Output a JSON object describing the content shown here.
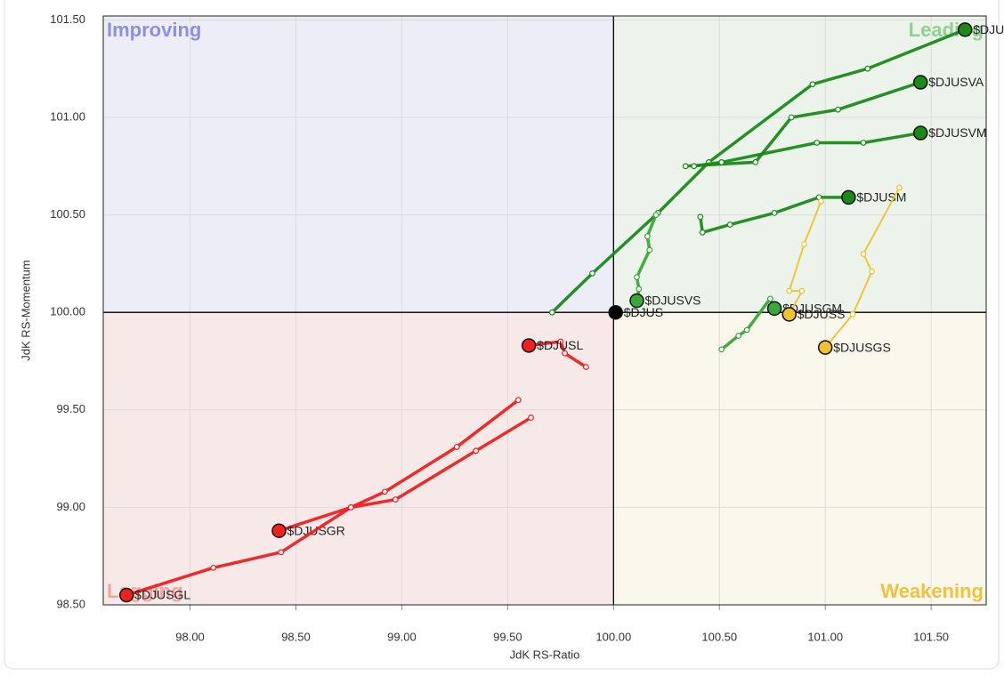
{
  "chart_data": {
    "type": "rrg",
    "x_label": "JdK RS-Ratio",
    "y_label": "JdK RS-Momentum",
    "xlim": [
      97.59,
      101.76
    ],
    "ylim": [
      98.5,
      101.52
    ],
    "xticks": [
      {
        "value": 98,
        "label": "98.00"
      },
      {
        "value": 98.5,
        "label": "98.50"
      },
      {
        "value": 99,
        "label": "99.00"
      },
      {
        "value": 99.5,
        "label": "99.50"
      },
      {
        "value": 100,
        "label": "100.00"
      },
      {
        "value": 100.5,
        "label": "100.50"
      },
      {
        "value": 101,
        "label": "101.00"
      },
      {
        "value": 101.5,
        "label": "101.50"
      }
    ],
    "yticks": [
      {
        "value": 98.5,
        "label": "98.50"
      },
      {
        "value": 99,
        "label": "99.00"
      },
      {
        "value": 99.5,
        "label": "99.50"
      },
      {
        "value": 100,
        "label": "100.00"
      },
      {
        "value": 100.5,
        "label": "100.50"
      },
      {
        "value": 101,
        "label": "101.00"
      },
      {
        "value": 101.5,
        "label": "101.50"
      }
    ],
    "grid": true,
    "quadrant_center": [
      100,
      100
    ],
    "quadrants": [
      {
        "label": "Improving",
        "color": "#8c8fe6",
        "fill": "#ededf7",
        "corner": "top-left"
      },
      {
        "label": "Leading",
        "color": "#90d090",
        "fill": "#ebf3ea",
        "corner": "top-right"
      },
      {
        "label": "Lagging",
        "color": "#f4a3a3",
        "fill": "#f8e9e9",
        "corner": "bottom-left"
      },
      {
        "label": "Weakening",
        "color": "#f0c240",
        "fill": "#faf7ec",
        "corner": "bottom-right"
      }
    ],
    "series": [
      {
        "name": "$DJUSVL",
        "color": "#1a8a1a",
        "x": [
          99.71,
          99.9,
          100.21,
          100.45,
          100.94,
          101.2,
          101.66
        ],
        "y": [
          100.0,
          100.2,
          100.51,
          100.77,
          101.17,
          101.25,
          101.45
        ]
      },
      {
        "name": "$DJUSVA",
        "color": "#1a8a1a",
        "x": [
          100.34,
          100.67,
          100.84,
          101.06,
          101.45
        ],
        "y": [
          100.75,
          100.77,
          101.0,
          101.04,
          101.18
        ]
      },
      {
        "name": "$DJUSVM",
        "color": "#1a8a1a",
        "x": [
          100.38,
          100.51,
          100.96,
          101.18,
          101.45
        ],
        "y": [
          100.75,
          100.77,
          100.87,
          100.87,
          100.92
        ]
      },
      {
        "name": "$DJUSM",
        "color": "#1a8a1a",
        "x": [
          100.41,
          100.42,
          100.55,
          100.76,
          100.97,
          101.11
        ],
        "y": [
          100.49,
          100.41,
          100.45,
          100.51,
          100.59,
          100.59
        ]
      },
      {
        "name": "$DJUSVS",
        "color": "#3aa83a",
        "x": [
          100.2,
          100.16,
          100.17,
          100.11,
          100.12,
          100.11
        ],
        "y": [
          100.5,
          100.39,
          100.32,
          100.18,
          100.12,
          100.06
        ]
      },
      {
        "name": "$DJUSGM",
        "color": "#3aa83a",
        "x": [
          100.51,
          100.59,
          100.63,
          100.74,
          100.76
        ],
        "y": [
          99.81,
          99.88,
          99.91,
          100.07,
          100.02
        ]
      },
      {
        "name": "$DJUSS",
        "color": "#f0c230",
        "x": [
          100.98,
          100.9,
          100.83,
          100.89,
          100.83
        ],
        "y": [
          100.57,
          100.35,
          100.11,
          100.11,
          99.99
        ]
      },
      {
        "name": "$DJUSGS",
        "color": "#f0c230",
        "x": [
          101.35,
          101.18,
          101.22,
          101.13,
          101.0
        ],
        "y": [
          100.64,
          100.3,
          100.21,
          99.99,
          99.82
        ]
      },
      {
        "name": "$DJUSL",
        "color": "#ee2020",
        "x": [
          99.87,
          99.77,
          99.75,
          99.6
        ],
        "y": [
          99.72,
          99.79,
          99.85,
          99.83
        ]
      },
      {
        "name": "$DJUSGR",
        "color": "#ee2020",
        "x": [
          99.55,
          99.26,
          98.92,
          98.76,
          98.42
        ],
        "y": [
          99.55,
          99.31,
          99.08,
          99.0,
          98.88
        ]
      },
      {
        "name": "$DJUSGL",
        "color": "#ee2020",
        "x": [
          99.61,
          99.35,
          98.97,
          98.76,
          98.43,
          98.11,
          97.7
        ],
        "y": [
          99.46,
          99.29,
          99.04,
          99.0,
          98.77,
          98.69,
          98.55
        ]
      },
      {
        "name": "$DJUS",
        "color": "#000000",
        "x": [
          100.01
        ],
        "y": [
          100.0
        ]
      }
    ]
  }
}
